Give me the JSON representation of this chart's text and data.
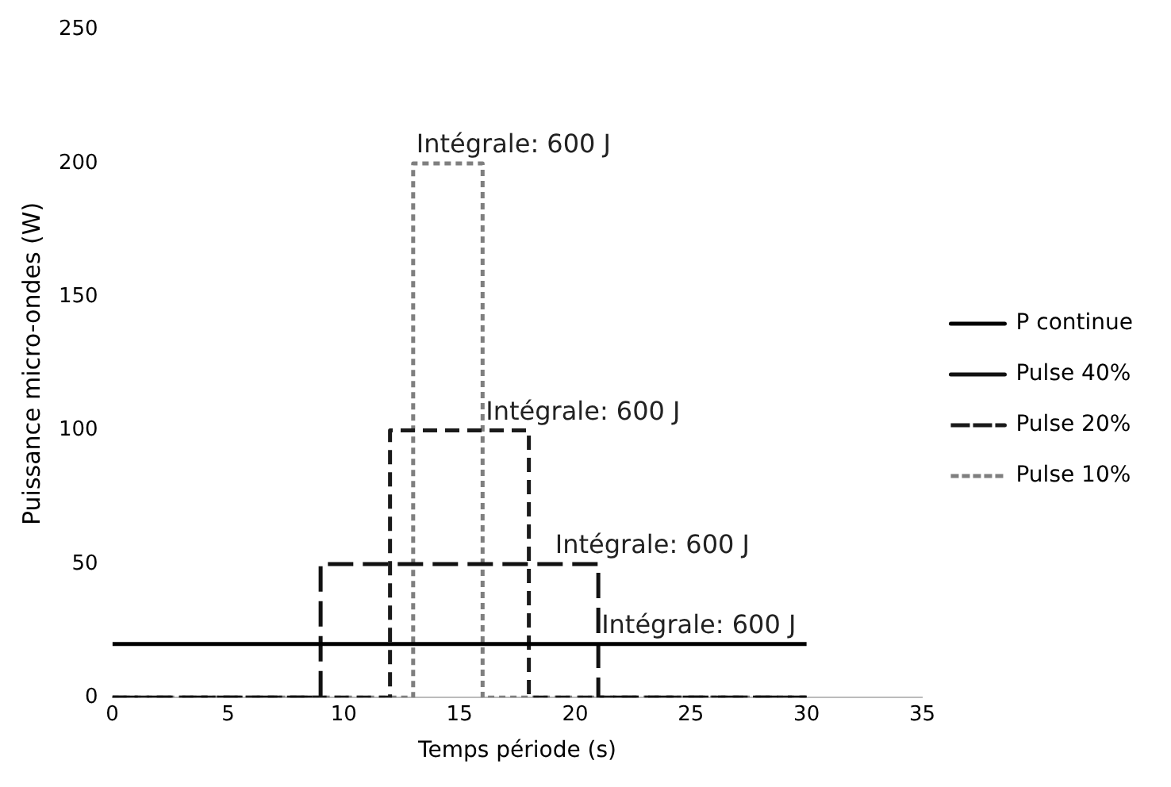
{
  "chart_data": {
    "type": "line",
    "xlabel": "Temps période (s)",
    "ylabel": "Puissance micro-ondes (W)",
    "xlim": [
      0,
      35
    ],
    "xticks": [
      0,
      5,
      10,
      15,
      20,
      25,
      30,
      35
    ],
    "ylim": [
      0,
      250
    ],
    "yticks": [
      0,
      50,
      100,
      150,
      200,
      250
    ],
    "grid": false,
    "legend": "right",
    "marker": "none",
    "series": [
      {
        "name": "P continue",
        "color": "#000000",
        "line_style": "solid",
        "x": [
          0,
          30
        ],
        "values": [
          20,
          20
        ]
      },
      {
        "name": "Pulse 40%",
        "color": "#111111",
        "line_style": "dashed",
        "x": [
          0,
          9,
          9,
          21,
          21,
          30
        ],
        "values": [
          0,
          0,
          50,
          50,
          0,
          0
        ]
      },
      {
        "name": "Pulse 20%",
        "color": "#1a1a1a",
        "line_style": "dashed",
        "x": [
          0,
          12,
          12,
          18,
          18,
          30
        ],
        "values": [
          0,
          0,
          100,
          100,
          0,
          0
        ]
      },
      {
        "name": "Pulse 10%",
        "color": "#7f7f7f",
        "line_style": "dotted",
        "x": [
          0,
          13,
          13,
          16,
          16,
          30
        ],
        "values": [
          0,
          0,
          200,
          200,
          0,
          0
        ]
      }
    ],
    "annotations": [
      {
        "text": "Intégrale: 600 J",
        "x": 13,
        "y": 200
      },
      {
        "text": "Intégrale: 600 J",
        "x": 16,
        "y": 100
      },
      {
        "text": "Intégrale: 600 J",
        "x": 19,
        "y": 50
      },
      {
        "text": "Intégrale: 600 J",
        "x": 21,
        "y": 20
      }
    ]
  }
}
